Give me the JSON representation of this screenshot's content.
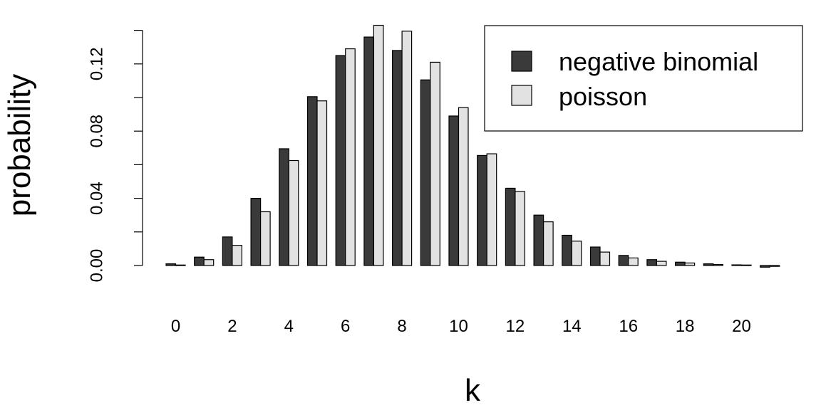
{
  "chart_data": {
    "type": "bar",
    "xlabel": "k",
    "ylabel": "probability",
    "categories": [
      0,
      1,
      2,
      3,
      4,
      5,
      6,
      7,
      8,
      9,
      10,
      11,
      12,
      13,
      14,
      15,
      16,
      17,
      18,
      19,
      20,
      21
    ],
    "x_tick_labels": [
      "0",
      "2",
      "4",
      "6",
      "8",
      "10",
      "12",
      "14",
      "16",
      "18",
      "20"
    ],
    "x_tick_categories": [
      0,
      2,
      4,
      6,
      8,
      10,
      12,
      14,
      16,
      18,
      20
    ],
    "y_ticks": [
      0.0,
      0.04,
      0.08,
      0.12
    ],
    "y_tick_labels": [
      "0.00",
      "0.04",
      "0.08",
      "0.12"
    ],
    "y_minor_ticks": [
      0.02,
      0.06,
      0.1,
      0.14
    ],
    "ylim": [
      0,
      0.14
    ],
    "grid": false,
    "legend_position": "top-right",
    "series": [
      {
        "name": "negative binomial",
        "color": "#3a3a3a",
        "values": [
          0.001,
          0.005,
          0.017,
          0.04,
          0.0695,
          0.1005,
          0.125,
          0.136,
          0.128,
          0.1105,
          0.089,
          0.0655,
          0.046,
          0.03,
          0.018,
          0.011,
          0.006,
          0.0035,
          0.002,
          0.001,
          0.0004,
          -0.001
        ]
      },
      {
        "name": "poisson",
        "color": "#e2e2e2",
        "values": [
          0.0003,
          0.0035,
          0.012,
          0.032,
          0.0625,
          0.098,
          0.129,
          0.143,
          0.1395,
          0.121,
          0.094,
          0.0665,
          0.044,
          0.026,
          0.0145,
          0.008,
          0.0045,
          0.0025,
          0.0015,
          0.0006,
          0.0003,
          -0.0005
        ]
      }
    ]
  }
}
